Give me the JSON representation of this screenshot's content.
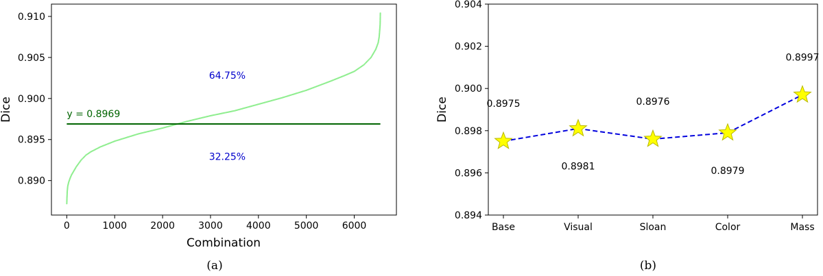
{
  "chart_data": [
    {
      "type": "scatter",
      "caption": "(a)",
      "xlabel": "Combination",
      "ylabel": "Dice",
      "xlim": [
        -320,
        6880
      ],
      "ylim": [
        0.8858,
        0.9115
      ],
      "xticks": [
        0,
        1000,
        2000,
        3000,
        4000,
        5000,
        6000
      ],
      "xtick_labels": [
        "0",
        "1000",
        "2000",
        "3000",
        "4000",
        "5000",
        "6000"
      ],
      "yticks": [
        0.89,
        0.895,
        0.9,
        0.905,
        0.91
      ],
      "ytick_labels": [
        "0.890",
        "0.895",
        "0.900",
        "0.905",
        "0.910"
      ],
      "series_color": "#90ee90",
      "curve_points": [
        [
          0,
          0.8872
        ],
        [
          5,
          0.888
        ],
        [
          10,
          0.8887
        ],
        [
          20,
          0.8893
        ],
        [
          40,
          0.8898
        ],
        [
          70,
          0.8903
        ],
        [
          100,
          0.8907
        ],
        [
          150,
          0.8912
        ],
        [
          200,
          0.8917
        ],
        [
          300,
          0.8925
        ],
        [
          400,
          0.8931
        ],
        [
          500,
          0.8935
        ],
        [
          700,
          0.8941
        ],
        [
          1000,
          0.8948
        ],
        [
          1500,
          0.8957
        ],
        [
          2000,
          0.8964
        ],
        [
          2500,
          0.8972
        ],
        [
          3000,
          0.8979
        ],
        [
          3500,
          0.8985
        ],
        [
          4000,
          0.8993
        ],
        [
          4500,
          0.9001
        ],
        [
          5000,
          0.901
        ],
        [
          5500,
          0.9021
        ],
        [
          5800,
          0.9028
        ],
        [
          6000,
          0.9033
        ],
        [
          6200,
          0.9041
        ],
        [
          6350,
          0.905
        ],
        [
          6450,
          0.906
        ],
        [
          6500,
          0.9068
        ],
        [
          6520,
          0.9075
        ],
        [
          6530,
          0.9082
        ],
        [
          6540,
          0.909
        ],
        [
          6545,
          0.9104
        ]
      ],
      "reference_line": {
        "y": 0.8969,
        "x_start": 0,
        "x_end": 6545,
        "label": "y = 0.8969",
        "color": "#006400"
      },
      "annotations": [
        {
          "text": "64.75%",
          "x": 3350,
          "y": 0.9024,
          "color": "#0000cc"
        },
        {
          "text": "32.25%",
          "x": 3350,
          "y": 0.8925,
          "color": "#0000cc"
        }
      ]
    },
    {
      "type": "line",
      "caption": "(b)",
      "xlabel": "",
      "ylabel": "Dice",
      "categories": [
        "Base",
        "Visual",
        "Sloan",
        "Color",
        "Mass"
      ],
      "values": [
        0.8975,
        0.8981,
        0.8976,
        0.8979,
        0.8997
      ],
      "ylim": [
        0.894,
        0.904
      ],
      "yticks": [
        0.894,
        0.896,
        0.898,
        0.9,
        0.902,
        0.904
      ],
      "ytick_labels": [
        "0.894",
        "0.896",
        "0.898",
        "0.900",
        "0.902",
        "0.904"
      ],
      "line_color": "#0000dd",
      "marker_color": "#ffff00",
      "marker_edge": "#b8b800",
      "data_labels": [
        {
          "text": "0.8975",
          "position": "above"
        },
        {
          "text": "0.8981",
          "position": "below"
        },
        {
          "text": "0.8976",
          "position": "above"
        },
        {
          "text": "0.8979",
          "position": "below"
        },
        {
          "text": "0.8997",
          "position": "above"
        }
      ]
    }
  ]
}
